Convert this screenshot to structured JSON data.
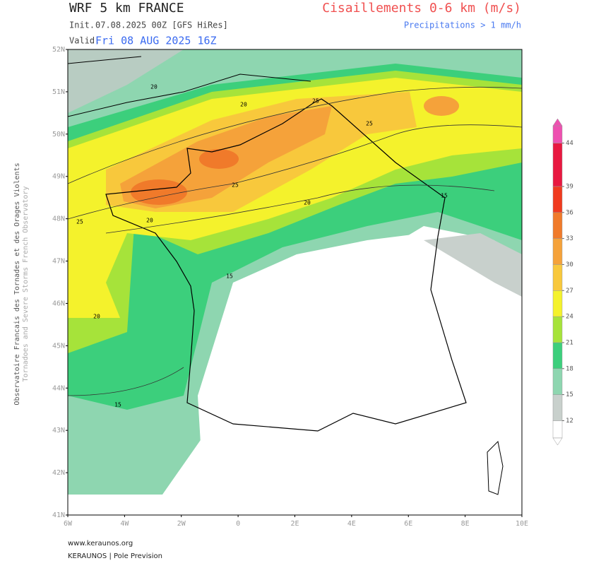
{
  "header": {
    "title": "WRF 5 km FRANCE",
    "parameter": "Cisaillements 0-6 km (m/s)",
    "precip_note": "Precipitations > 1 mm/h",
    "init_label": "Init.",
    "init_value": "07.08.2025 00Z [GFS HiRes]",
    "valid_label": "Valid.",
    "valid_value": "Fri 08 AUG 2025 16Z"
  },
  "axes": {
    "lat_labels": [
      "52N",
      "51N",
      "50N",
      "49N",
      "48N",
      "47N",
      "46N",
      "45N",
      "44N",
      "43N",
      "42N",
      "41N"
    ],
    "lon_labels": [
      "6W",
      "4W",
      "2W",
      "0",
      "2E",
      "4E",
      "6E",
      "8E",
      "10E"
    ]
  },
  "colorbar": {
    "lim": [
      10,
      46
    ],
    "ticks": [
      12,
      15,
      18,
      21,
      24,
      27,
      30,
      33,
      36,
      39,
      44
    ],
    "colors": [
      "#ffffff",
      "#c8d0cc",
      "#8ed6b0",
      "#3ccf7c",
      "#a6e33a",
      "#f4f22c",
      "#f8c83c",
      "#f5a23a",
      "#f07a2a",
      "#f03a1e",
      "#e81840",
      "#ee50b0"
    ]
  },
  "contour_labels": [
    20,
    20,
    25,
    25,
    20,
    25,
    20,
    15,
    20,
    15,
    15,
    25
  ],
  "side_text": {
    "fr": "Observatoire Francais des Tornades et des Orages Violents",
    "en": "Tornadoes and Severe Storms French Observatory"
  },
  "footer": {
    "url": "www.keraunos.org",
    "credit": "KERAUNOS | Pole Prevision"
  }
}
